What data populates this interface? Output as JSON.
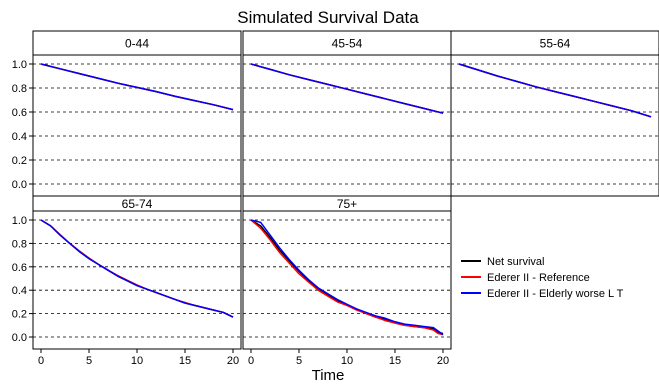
{
  "chart_data": {
    "type": "line",
    "title": "Simulated Survival Data",
    "xlabel": "Time",
    "ylabel": "",
    "xlim": [
      0,
      20
    ],
    "ylim": [
      0,
      1
    ],
    "x_ticks": [
      0,
      5,
      10,
      15,
      20
    ],
    "y_ticks": [
      0.0,
      0.2,
      0.4,
      0.6,
      0.8,
      1.0
    ],
    "y_tick_labels": [
      "0.0",
      "0.2",
      "0.4",
      "0.6",
      "0.8",
      "1.0"
    ],
    "grid": "horizontal-dashed",
    "legend_position": "bottom-right",
    "legend": [
      {
        "label": "Net survival",
        "color": "#000000"
      },
      {
        "label": "Ederer II - Reference",
        "color": "#ff0000"
      },
      {
        "label": "Ederer II - Elderly worse L T",
        "color": "#0000ff"
      }
    ],
    "panels": [
      {
        "label": "0-44",
        "x": [
          0,
          2,
          4,
          6,
          8,
          10,
          12,
          14,
          16,
          18,
          20
        ],
        "series": [
          {
            "name": "Net survival",
            "values": [
              1.0,
              0.96,
              0.92,
              0.88,
              0.84,
              0.805,
              0.77,
              0.73,
              0.695,
              0.66,
              0.62
            ]
          },
          {
            "name": "Ederer II - Reference",
            "values": [
              1.0,
              0.96,
              0.92,
              0.88,
              0.84,
              0.805,
              0.77,
              0.73,
              0.695,
              0.66,
              0.62
            ]
          },
          {
            "name": "Ederer II - Elderly worse L T",
            "values": [
              1.0,
              0.96,
              0.92,
              0.88,
              0.84,
              0.805,
              0.77,
              0.73,
              0.695,
              0.66,
              0.62
            ]
          }
        ]
      },
      {
        "label": "45-54",
        "x": [
          0,
          2,
          4,
          6,
          8,
          10,
          12,
          14,
          16,
          18,
          20
        ],
        "series": [
          {
            "name": "Net survival",
            "values": [
              1.0,
              0.955,
              0.91,
              0.87,
              0.83,
              0.79,
              0.75,
              0.71,
              0.67,
              0.63,
              0.59
            ]
          },
          {
            "name": "Ederer II - Reference",
            "values": [
              1.0,
              0.955,
              0.91,
              0.87,
              0.83,
              0.79,
              0.75,
              0.71,
              0.67,
              0.63,
              0.59
            ]
          },
          {
            "name": "Ederer II - Elderly worse L T",
            "values": [
              1.0,
              0.955,
              0.91,
              0.87,
              0.83,
              0.79,
              0.75,
              0.71,
              0.67,
              0.63,
              0.59
            ]
          }
        ]
      },
      {
        "label": "55-64",
        "x": [
          0,
          2,
          4,
          6,
          8,
          10,
          12,
          14,
          16,
          18,
          20
        ],
        "series": [
          {
            "name": "Net survival",
            "values": [
              1.0,
              0.95,
              0.9,
              0.855,
              0.81,
              0.77,
              0.73,
              0.69,
              0.65,
              0.61,
              0.56
            ]
          },
          {
            "name": "Ederer II - Reference",
            "values": [
              1.0,
              0.95,
              0.9,
              0.855,
              0.81,
              0.77,
              0.73,
              0.69,
              0.65,
              0.61,
              0.56
            ]
          },
          {
            "name": "Ederer II - Elderly worse L T",
            "values": [
              1.0,
              0.95,
              0.9,
              0.855,
              0.81,
              0.77,
              0.73,
              0.69,
              0.65,
              0.61,
              0.56
            ]
          }
        ]
      },
      {
        "label": "65-74",
        "x": [
          0,
          1,
          2,
          3,
          4,
          5,
          6,
          7,
          8,
          9,
          10,
          11,
          12,
          13,
          14,
          15,
          16,
          17,
          18,
          19,
          20
        ],
        "series": [
          {
            "name": "Net survival",
            "values": [
              1.0,
              0.95,
              0.87,
              0.8,
              0.73,
              0.67,
              0.62,
              0.57,
              0.52,
              0.48,
              0.44,
              0.41,
              0.38,
              0.35,
              0.32,
              0.29,
              0.27,
              0.25,
              0.23,
              0.21,
              0.17
            ]
          },
          {
            "name": "Ederer II - Reference",
            "values": [
              1.0,
              0.95,
              0.875,
              0.8,
              0.735,
              0.675,
              0.62,
              0.57,
              0.525,
              0.485,
              0.445,
              0.41,
              0.38,
              0.35,
              0.32,
              0.295,
              0.27,
              0.25,
              0.23,
              0.21,
              0.17
            ]
          },
          {
            "name": "Ederer II - Elderly worse L T",
            "values": [
              1.0,
              0.95,
              0.87,
              0.8,
              0.73,
              0.67,
              0.62,
              0.57,
              0.52,
              0.48,
              0.44,
              0.41,
              0.38,
              0.35,
              0.32,
              0.29,
              0.27,
              0.25,
              0.23,
              0.21,
              0.17
            ]
          }
        ]
      },
      {
        "label": "75+",
        "x": [
          0,
          1,
          2,
          3,
          4,
          5,
          6,
          7,
          8,
          9,
          10,
          11,
          12,
          13,
          14,
          15,
          16,
          17,
          18,
          19,
          19.5,
          20
        ],
        "series": [
          {
            "name": "Net survival",
            "values": [
              1.0,
              0.95,
              0.85,
              0.74,
              0.65,
              0.56,
              0.48,
              0.41,
              0.36,
              0.31,
              0.27,
              0.24,
              0.2,
              0.17,
              0.15,
              0.12,
              0.1,
              0.09,
              0.08,
              0.07,
              0.04,
              0.03
            ]
          },
          {
            "name": "Ederer II - Reference",
            "values": [
              1.0,
              0.93,
              0.83,
              0.72,
              0.63,
              0.54,
              0.47,
              0.4,
              0.35,
              0.3,
              0.27,
              0.23,
              0.2,
              0.17,
              0.14,
              0.12,
              0.1,
              0.09,
              0.08,
              0.06,
              0.03,
              0.02
            ]
          },
          {
            "name": "Ederer II - Elderly worse L T",
            "values": [
              1.0,
              0.98,
              0.87,
              0.76,
              0.66,
              0.57,
              0.49,
              0.42,
              0.37,
              0.32,
              0.28,
              0.24,
              0.21,
              0.18,
              0.16,
              0.13,
              0.11,
              0.1,
              0.09,
              0.08,
              0.05,
              0.02
            ]
          }
        ]
      }
    ]
  }
}
